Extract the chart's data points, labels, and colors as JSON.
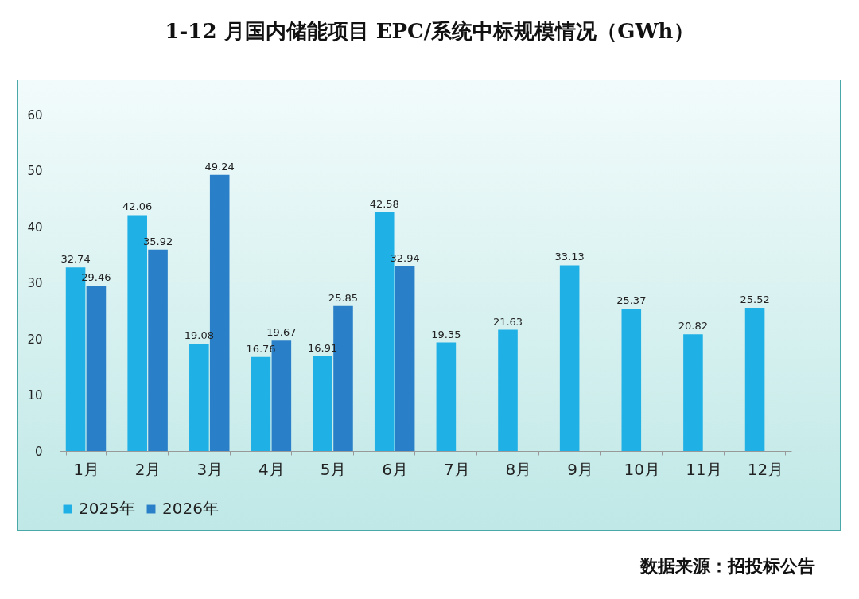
{
  "chart_data": {
    "type": "bar",
    "title": "1-12 月国内储能项目 EPC/系统中标规模情况（GWh）",
    "categories": [
      "1月",
      "2月",
      "3月",
      "4月",
      "5月",
      "6月",
      "7月",
      "8月",
      "9月",
      "10月",
      "11月",
      "12月"
    ],
    "series": [
      {
        "name": "2025年",
        "color": "#1fb0e6",
        "values": [
          32.74,
          42.06,
          19.08,
          16.76,
          16.91,
          42.58,
          19.35,
          21.63,
          33.13,
          25.37,
          20.82,
          25.52
        ]
      },
      {
        "name": "2026年",
        "color": "#2a80c8",
        "values": [
          29.46,
          35.92,
          49.24,
          19.67,
          25.85,
          32.94,
          null,
          null,
          null,
          null,
          null,
          null
        ]
      }
    ],
    "ylim": [
      0,
      60
    ],
    "yticks": [
      0,
      10,
      20,
      30,
      40,
      50,
      60
    ],
    "grid": false,
    "legend": "bottom",
    "data_labels": true,
    "annotations": [
      "数据来源：招投标公告"
    ]
  }
}
